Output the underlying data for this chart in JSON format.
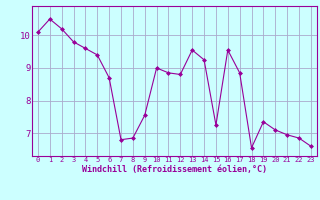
{
  "x": [
    0,
    1,
    2,
    3,
    4,
    5,
    6,
    7,
    8,
    9,
    10,
    11,
    12,
    13,
    14,
    15,
    16,
    17,
    18,
    19,
    20,
    21,
    22,
    23
  ],
  "y": [
    10.1,
    10.5,
    10.2,
    9.8,
    9.6,
    9.4,
    8.7,
    6.8,
    6.85,
    7.55,
    9.0,
    8.85,
    8.8,
    9.55,
    9.25,
    7.25,
    9.55,
    8.85,
    6.55,
    7.35,
    7.1,
    6.95,
    6.85,
    6.6
  ],
  "line_color": "#990099",
  "marker": "D",
  "marker_size": 2,
  "bg_color": "#ccffff",
  "grid_color": "#aaaacc",
  "xlabel": "Windchill (Refroidissement éolien,°C)",
  "xlabel_color": "#990099",
  "tick_color": "#990099",
  "ylim": [
    6.3,
    10.9
  ],
  "yticks": [
    7,
    8,
    9,
    10
  ],
  "xticks": [
    0,
    1,
    2,
    3,
    4,
    5,
    6,
    7,
    8,
    9,
    10,
    11,
    12,
    13,
    14,
    15,
    16,
    17,
    18,
    19,
    20,
    21,
    22,
    23
  ],
  "spine_color": "#990099",
  "tick_fontsize": 5.0,
  "ytick_fontsize": 6.5,
  "xlabel_fontsize": 6.0
}
